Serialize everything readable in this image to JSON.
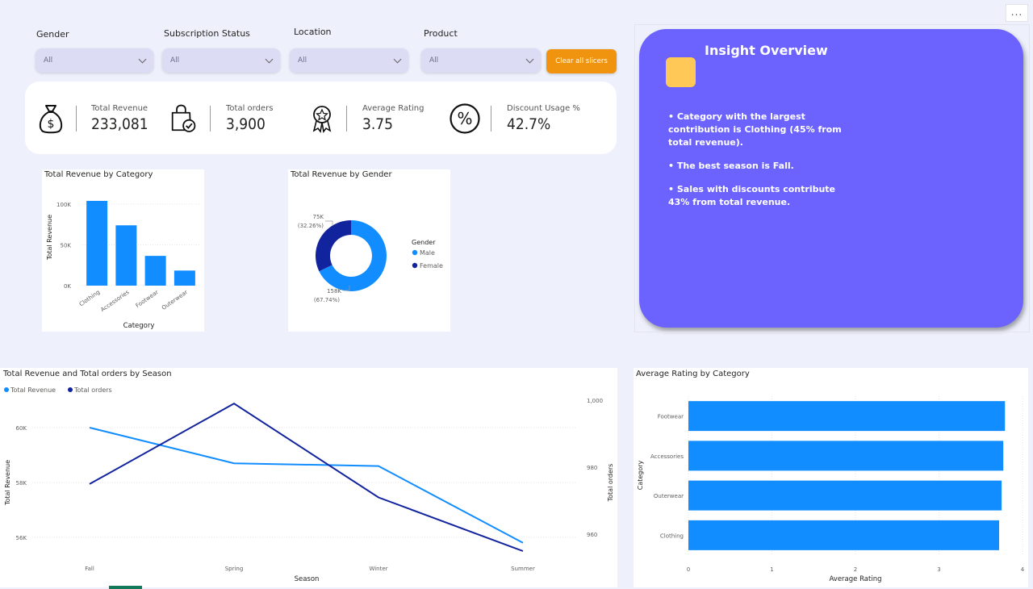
{
  "toolbar": {
    "more_label": "..."
  },
  "slicers": [
    {
      "label": "Gender",
      "value": "All"
    },
    {
      "label": "Subscription Status",
      "value": "All"
    },
    {
      "label": "Location",
      "value": "All"
    },
    {
      "label": "Product",
      "value": "All"
    }
  ],
  "clear_button": "Clear all slicers",
  "kpis": [
    {
      "label": "Total Revenue",
      "value": "233,081",
      "icon": "money-bag-icon"
    },
    {
      "label": "Total orders",
      "value": "3,900",
      "icon": "shopping-bag-icon"
    },
    {
      "label": "Average Rating",
      "value": "3.75",
      "icon": "award-badge-icon"
    },
    {
      "label": "Discount Usage %",
      "value": "42.7%",
      "icon": "percent-icon"
    }
  ],
  "insight": {
    "title": "Insight Overview",
    "bullets": [
      "• Category with the largest contribution is Clothing (45% from total revenue).",
      "• The best season is Fall.",
      "• Sales with discounts contribute 43% from total revenue."
    ],
    "accent_color": "#6c63ff",
    "square_color": "#ffc857"
  },
  "chart_data": [
    {
      "type": "bar",
      "title": "Total Revenue by Category",
      "categories": [
        "Clothing",
        "Accessories",
        "Footwear",
        "Outerwear"
      ],
      "values": [
        104000,
        74000,
        36500,
        18500
      ],
      "xlabel": "Category",
      "ylabel": "Total Revenue",
      "yticks": [
        "0K",
        "50K",
        "100K"
      ],
      "ylim": [
        0,
        100000
      ],
      "color": "#118dff"
    },
    {
      "type": "pie",
      "title": "Total Revenue by Gender",
      "legend_title": "Gender",
      "slices": [
        {
          "name": "Male",
          "value": 158000,
          "label": "158K",
          "pct": "(67.74%)",
          "color": "#118dff"
        },
        {
          "name": "Female",
          "value": 75000,
          "label": "75K",
          "pct": "(32.26%)",
          "color": "#12239e"
        }
      ]
    },
    {
      "type": "line",
      "title": "Total Revenue and Total orders by Season",
      "categories": [
        "Fall",
        "Spring",
        "Winter",
        "Summer"
      ],
      "xlabel": "Season",
      "ylabel_left": "Total Revenue",
      "ylabel_right": "Total orders",
      "left_ticks": [
        "56K",
        "58K",
        "60K"
      ],
      "right_ticks": [
        "960",
        "980",
        "1,000"
      ],
      "series": [
        {
          "name": "Total Revenue",
          "axis": "left",
          "values": [
            60000,
            58700,
            58600,
            55800
          ],
          "color": "#118dff"
        },
        {
          "name": "Total orders",
          "axis": "right",
          "values": [
            975,
            999,
            971,
            955
          ],
          "color": "#12239e"
        }
      ],
      "ylim_left": [
        55500,
        61000
      ],
      "ylim_right": [
        955,
        1000
      ]
    },
    {
      "type": "bar",
      "orientation": "horizontal",
      "title": "Average Rating by Category",
      "categories": [
        "Footwear",
        "Accessories",
        "Outerwear",
        "Clothing"
      ],
      "values": [
        3.79,
        3.77,
        3.75,
        3.72
      ],
      "xlabel": "Average Rating",
      "ylabel": "Category",
      "xticks": [
        "0",
        "1",
        "2",
        "3",
        "4"
      ],
      "xlim": [
        0,
        4
      ],
      "color": "#118dff"
    }
  ]
}
